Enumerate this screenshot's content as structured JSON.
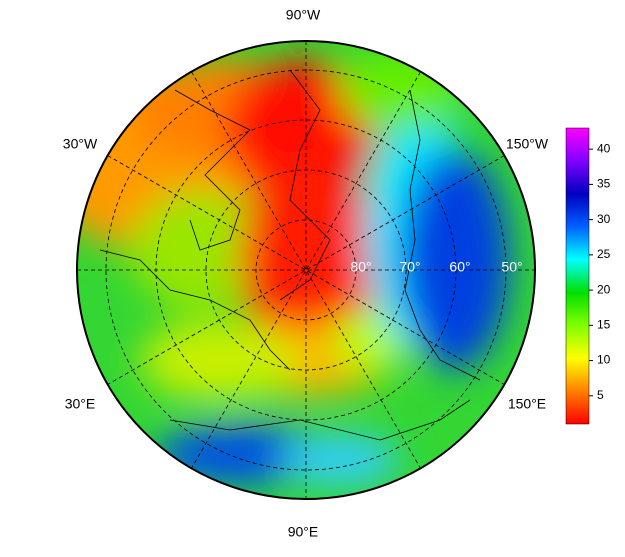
{
  "map": {
    "longitude_labels": [
      "90°W",
      "150°W",
      "30°W",
      "30°E",
      "150°E",
      "90°E"
    ],
    "latitude_labels": [
      "80°",
      "70°",
      "60°",
      "50°"
    ]
  },
  "colorbar": {
    "lim": [
      1,
      43
    ],
    "ticks": [
      5,
      10,
      15,
      20,
      25,
      30,
      35,
      40
    ],
    "colors": [
      "#ff0000",
      "#ff8000",
      "#ffff00",
      "#80ff00",
      "#00e000",
      "#00ffff",
      "#0060ff",
      "#0000c0",
      "#8000ff",
      "#ff00ff"
    ]
  }
}
